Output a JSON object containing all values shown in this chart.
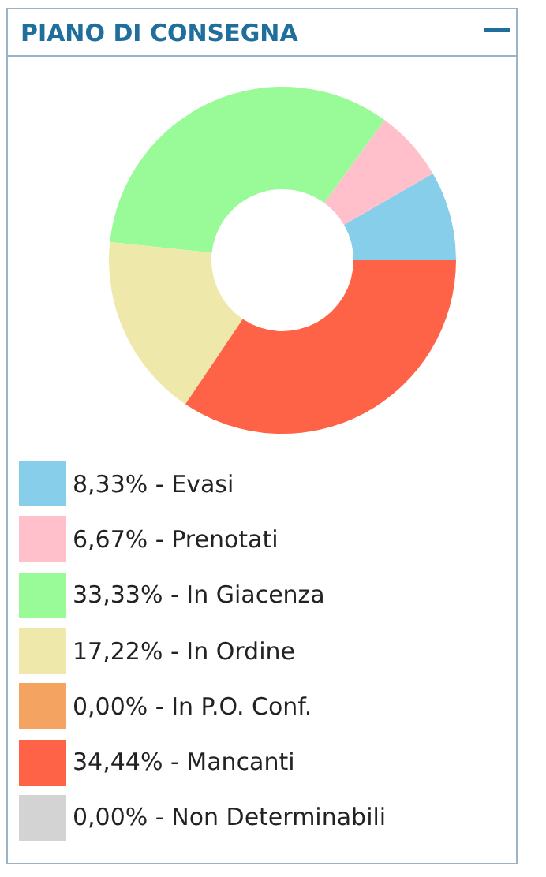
{
  "chart_data": {
    "type": "donut",
    "title": "PIANO DI CONSEGNA",
    "categories": [
      "8,33% - Evasi",
      "6,67% - Prenotati",
      "33,33% - In Giacenza",
      "17,22% - In Ordine",
      "0,00% - In P.O. Conf.",
      "34,44% - Mancanti",
      "0,00% - Non Determinabili"
    ],
    "values": [
      8.33,
      6.67,
      33.33,
      17.22,
      0,
      34.44,
      0
    ],
    "colors": [
      "#87ceeb",
      "#ffc0cb",
      "#98fb98",
      "#eee8aa",
      "#f4a460",
      "#ff6347",
      "#d3d3d3"
    ],
    "legend": "bottom"
  }
}
